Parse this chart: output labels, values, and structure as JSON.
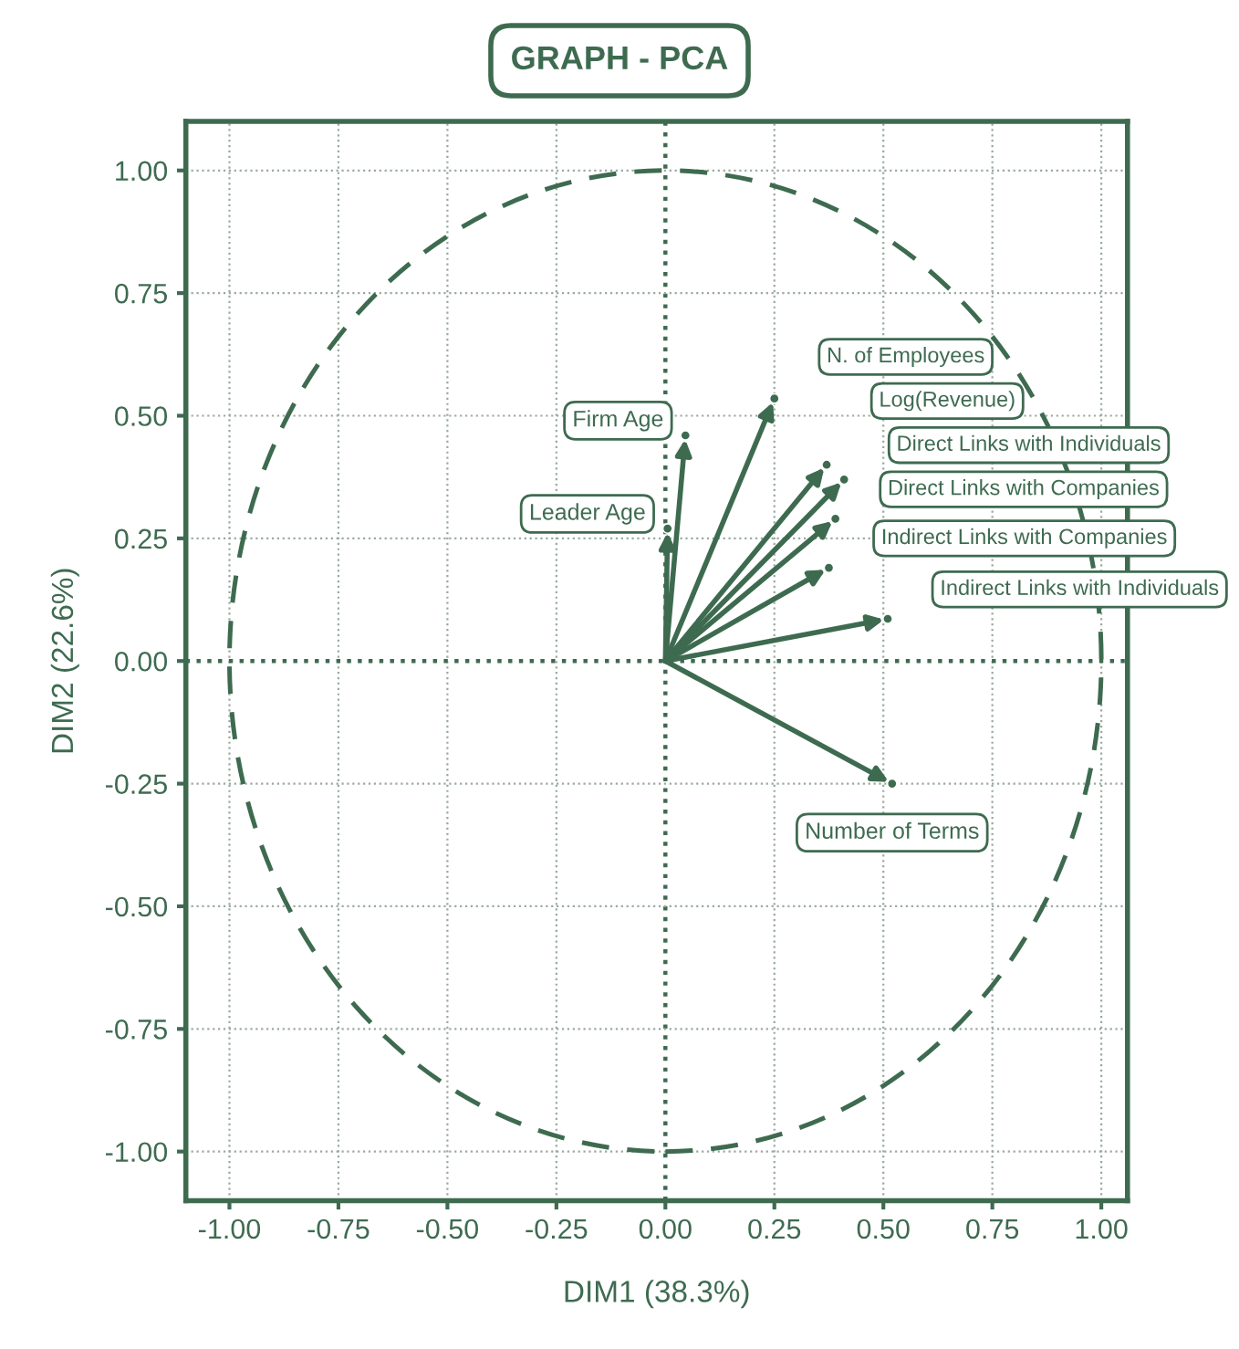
{
  "chart_data": {
    "type": "scatter",
    "title": "GRAPH - PCA",
    "xlabel": "DIM1 (38.3%)",
    "ylabel": "DIM2 (22.6%)",
    "xlim": [
      -1.1,
      1.06
    ],
    "ylim": [
      -1.1,
      1.1
    ],
    "xticks": [
      {
        "value": -1,
        "label": "-1.00"
      },
      {
        "value": -0.75,
        "label": "-0.75"
      },
      {
        "value": -0.5,
        "label": "-0.50"
      },
      {
        "value": -0.25,
        "label": "-0.25"
      },
      {
        "value": 0,
        "label": "0.00"
      },
      {
        "value": 0.25,
        "label": "0.25"
      },
      {
        "value": 0.5,
        "label": "0.50"
      },
      {
        "value": 0.75,
        "label": "0.75"
      },
      {
        "value": 1,
        "label": "1.00"
      }
    ],
    "yticks": [
      {
        "value": -1,
        "label": "-1.00"
      },
      {
        "value": -0.75,
        "label": "-0.75"
      },
      {
        "value": -0.5,
        "label": "-0.50"
      },
      {
        "value": -0.25,
        "label": "-0.25"
      },
      {
        "value": 0,
        "label": "0.00"
      },
      {
        "value": 0.25,
        "label": "0.25"
      },
      {
        "value": 0.5,
        "label": "0.50"
      },
      {
        "value": 0.75,
        "label": "0.75"
      },
      {
        "value": 1,
        "label": "1.00"
      }
    ],
    "grid": true,
    "legend": false,
    "marker": "circle",
    "series": [
      {
        "name": "N. of Employees",
        "color": "#3e6b50",
        "x": [
          0.25
        ],
        "values": [
          0.535
        ]
      },
      {
        "name": "Firm Age",
        "color": "#3e6b50",
        "x": [
          0.046
        ],
        "values": [
          0.46
        ]
      },
      {
        "name": "Leader Age",
        "color": "#3e6b50",
        "x": [
          0.005
        ],
        "values": [
          0.27
        ]
      },
      {
        "name": "Log(Revenue)",
        "color": "#3e6b50",
        "x": [
          0.37
        ],
        "values": [
          0.4
        ]
      },
      {
        "name": "Direct Links with Individuals",
        "color": "#3e6b50",
        "x": [
          0.41
        ],
        "values": [
          0.37
        ]
      },
      {
        "name": "Direct Links with Companies",
        "color": "#3e6b50",
        "x": [
          0.39
        ],
        "values": [
          0.29
        ]
      },
      {
        "name": "Indirect Links with Companies",
        "color": "#3e6b50",
        "x": [
          0.375
        ],
        "values": [
          0.19
        ]
      },
      {
        "name": "Indirect Links with Individuals",
        "color": "#3e6b50",
        "x": [
          0.51
        ],
        "values": [
          0.086
        ]
      },
      {
        "name": "Number of Terms",
        "color": "#3e6b50",
        "x": [
          0.52
        ],
        "values": [
          -0.25
        ]
      }
    ]
  }
}
